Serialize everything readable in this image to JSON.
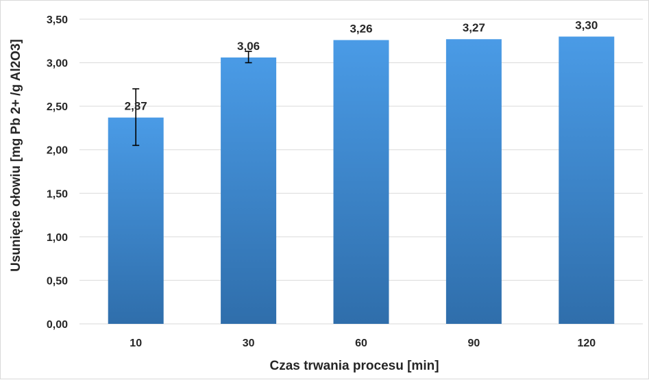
{
  "chart_data": {
    "type": "bar",
    "title": "",
    "xlabel": "Czas trwania procesu [min]",
    "ylabel": "Usunięcie ołowiu [mg Pb 2+ /g Al2O3]",
    "categories": [
      "10",
      "30",
      "60",
      "90",
      "120"
    ],
    "values": [
      2.37,
      3.06,
      3.26,
      3.27,
      3.3
    ],
    "value_labels": [
      "2,37",
      "3,06",
      "3,26",
      "3,27",
      "3,30"
    ],
    "error_bars": [
      {
        "low": 2.05,
        "high": 2.7
      },
      {
        "low": 3.0,
        "high": 3.13
      },
      null,
      null,
      null
    ],
    "ylim": [
      0,
      3.5
    ],
    "yticks": [
      0,
      0.5,
      1.0,
      1.5,
      2.0,
      2.5,
      3.0,
      3.5
    ],
    "ytick_labels": [
      "0,00",
      "0,50",
      "1,00",
      "1,50",
      "2,00",
      "2,50",
      "3,00",
      "3,50"
    ],
    "grid": true,
    "legend": "none",
    "bar_color_top": "#4a9be6",
    "bar_color_bottom": "#2f6eab",
    "grid_color": "#d9d9d9"
  }
}
